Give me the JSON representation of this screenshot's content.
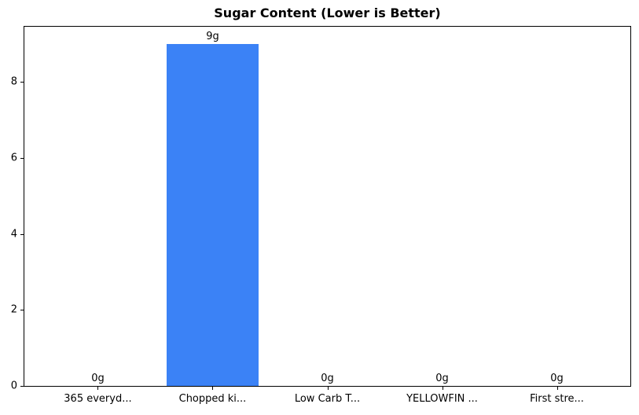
{
  "chart_data": {
    "type": "bar",
    "title": "Sugar Content (Lower is Better)",
    "categories": [
      "365 everyd...",
      "Chopped ki...",
      "Low Carb T...",
      "YELLOWFIN ...",
      "First stre..."
    ],
    "values": [
      0,
      9,
      0,
      0,
      0
    ],
    "bar_labels": [
      "0g",
      "9g",
      "0g",
      "0g",
      "0g"
    ],
    "xlabel": "",
    "ylabel": "",
    "yticks": [
      0,
      2,
      4,
      6,
      8
    ],
    "ylim": [
      0,
      9.45
    ],
    "grid": false,
    "legend_position": "none",
    "bar_color": "#3b82f6",
    "axis_color": "#000000",
    "text_color": "#000000",
    "background_color": "#ffffff"
  }
}
